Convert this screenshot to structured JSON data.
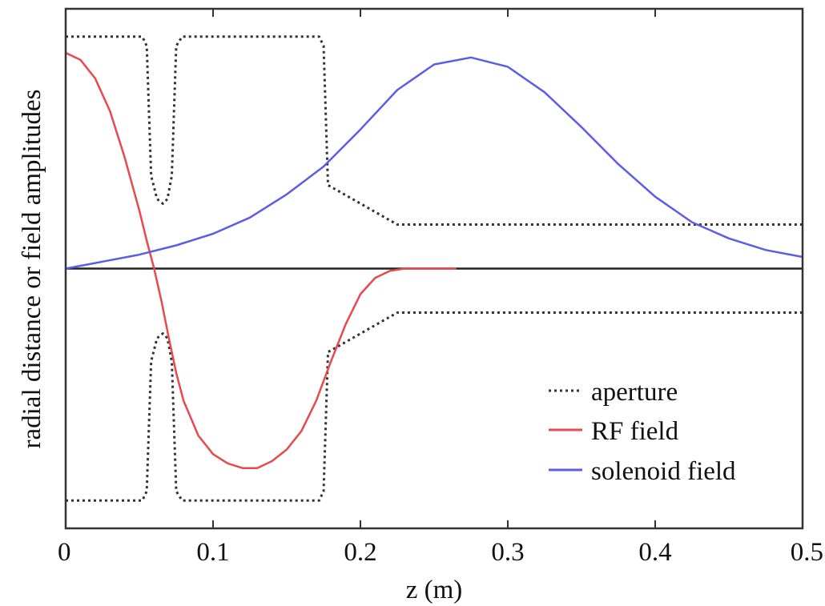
{
  "chart_data": {
    "type": "line",
    "title": "",
    "xlabel": "z (m)",
    "ylabel": "radial distance or field amplitudes",
    "xlim": [
      0,
      0.5
    ],
    "ylim": [
      -1.12,
      1.12
    ],
    "x_ticks": [
      "0",
      "0.1",
      "0.2",
      "0.3",
      "0.4",
      "0.5"
    ],
    "x_tick_values": [
      0,
      0.1,
      0.2,
      0.3,
      0.4,
      0.5
    ],
    "y_ticks_shown": false,
    "zero_line": true,
    "grid": false,
    "legend": {
      "position": "lower-right",
      "entries": [
        {
          "label": "aperture",
          "series": "aperture"
        },
        {
          "label": "RF field",
          "series": "rf"
        },
        {
          "label": "solenoid field",
          "series": "solenoid"
        }
      ]
    },
    "series": [
      {
        "id": "aperture",
        "name": "aperture",
        "color": "#333333",
        "style": "dotted",
        "mirrored_about_zero": true,
        "x": [
          0,
          0.052,
          0.055,
          0.058,
          0.062,
          0.066,
          0.069,
          0.072,
          0.075,
          0.079,
          0.172,
          0.175,
          0.178,
          0.225,
          0.5
        ],
        "y": [
          1.0,
          1.0,
          0.96,
          0.4,
          0.3,
          0.28,
          0.3,
          0.4,
          0.96,
          1.0,
          1.0,
          0.96,
          0.36,
          0.19,
          0.19
        ]
      },
      {
        "id": "rf",
        "name": "RF field",
        "color": "#e8494f",
        "style": "solid",
        "x": [
          0,
          0.01,
          0.02,
          0.03,
          0.04,
          0.05,
          0.055,
          0.06,
          0.065,
          0.07,
          0.075,
          0.08,
          0.09,
          0.1,
          0.11,
          0.12,
          0.13,
          0.14,
          0.15,
          0.16,
          0.17,
          0.18,
          0.19,
          0.2,
          0.21,
          0.22,
          0.23,
          0.24,
          0.25,
          0.265
        ],
        "y": [
          0.93,
          0.9,
          0.82,
          0.68,
          0.48,
          0.25,
          0.12,
          0.0,
          -0.14,
          -0.3,
          -0.45,
          -0.57,
          -0.72,
          -0.8,
          -0.84,
          -0.86,
          -0.86,
          -0.83,
          -0.78,
          -0.7,
          -0.57,
          -0.4,
          -0.24,
          -0.11,
          -0.04,
          -0.01,
          0.0,
          0.0,
          0.0,
          0.0
        ]
      },
      {
        "id": "solenoid",
        "name": "solenoid field",
        "color": "#5b5de8",
        "style": "solid",
        "x": [
          0,
          0.025,
          0.05,
          0.075,
          0.1,
          0.125,
          0.15,
          0.175,
          0.2,
          0.225,
          0.25,
          0.275,
          0.3,
          0.325,
          0.35,
          0.375,
          0.4,
          0.425,
          0.45,
          0.475,
          0.5
        ],
        "y": [
          0.0,
          0.03,
          0.06,
          0.1,
          0.15,
          0.22,
          0.32,
          0.44,
          0.6,
          0.77,
          0.88,
          0.91,
          0.87,
          0.76,
          0.61,
          0.45,
          0.31,
          0.2,
          0.13,
          0.08,
          0.05
        ]
      }
    ]
  }
}
